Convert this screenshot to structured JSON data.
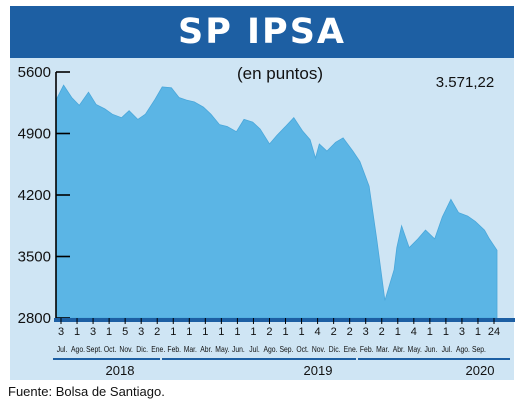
{
  "header": {
    "title": "SP IPSA"
  },
  "source": "Fuente: Bolsa de Santiago.",
  "chart_data": {
    "type": "area",
    "title": "SP IPSA",
    "subtitle": "(en puntos)",
    "last_value_label": "3.571,22",
    "ylim": [
      2800,
      5600
    ],
    "yticks": [
      "5600",
      "4900",
      "4200",
      "3500",
      "2800"
    ],
    "ytick_values": [
      5600,
      4900,
      4200,
      3500,
      2800
    ],
    "color": "#5bb5e5",
    "grid": false,
    "x_ticks": [
      {
        "day": "3",
        "month": "Jul."
      },
      {
        "day": "1",
        "month": "Ago."
      },
      {
        "day": "3",
        "month": "Sept."
      },
      {
        "day": "1",
        "month": "Oct."
      },
      {
        "day": "5",
        "month": "Nov."
      },
      {
        "day": "3",
        "month": "Dic."
      },
      {
        "day": "2",
        "month": "Ene."
      },
      {
        "day": "1",
        "month": "Feb."
      },
      {
        "day": "1",
        "month": "Mar."
      },
      {
        "day": "1",
        "month": "Abr."
      },
      {
        "day": "1",
        "month": "May."
      },
      {
        "day": "1",
        "month": "Jun."
      },
      {
        "day": "1",
        "month": "Jul."
      },
      {
        "day": "2",
        "month": "Ago."
      },
      {
        "day": "1",
        "month": "Sep."
      },
      {
        "day": "1",
        "month": "Oct."
      },
      {
        "day": "4",
        "month": "Nov."
      },
      {
        "day": "2",
        "month": "Dic."
      },
      {
        "day": "2",
        "month": "Ene."
      },
      {
        "day": "3",
        "month": "Feb."
      },
      {
        "day": "2",
        "month": "Mar."
      },
      {
        "day": "1",
        "month": "Abr."
      },
      {
        "day": "4",
        "month": "May."
      },
      {
        "day": "1",
        "month": "Jun."
      },
      {
        "day": "1",
        "month": "Jul."
      },
      {
        "day": "3",
        "month": "Ago."
      },
      {
        "day": "1",
        "month": "Sep."
      },
      {
        "day": "24",
        "month": ""
      }
    ],
    "years": [
      "2018",
      "2019",
      "2020"
    ],
    "series": [
      {
        "x": [
          "2018-07-03",
          "2018-07-17",
          "2018-08-01",
          "2018-08-15",
          "2018-09-01",
          "2018-09-15",
          "2018-10-01",
          "2018-10-15",
          "2018-11-01",
          "2018-11-15",
          "2018-12-01",
          "2018-12-15",
          "2019-01-02",
          "2019-01-15",
          "2019-02-01",
          "2019-02-15",
          "2019-03-01",
          "2019-03-15",
          "2019-04-01",
          "2019-04-15",
          "2019-05-01",
          "2019-05-15",
          "2019-06-01",
          "2019-06-15",
          "2019-07-01",
          "2019-07-15",
          "2019-08-01",
          "2019-08-15",
          "2019-09-01",
          "2019-09-15",
          "2019-10-01",
          "2019-10-15",
          "2019-10-25",
          "2019-11-01",
          "2019-11-15",
          "2019-12-01",
          "2019-12-15",
          "2020-01-02",
          "2020-01-15",
          "2020-02-01",
          "2020-02-15",
          "2020-03-01",
          "2020-03-18",
          "2020-03-23",
          "2020-04-01",
          "2020-04-15",
          "2020-05-01",
          "2020-05-15",
          "2020-06-01",
          "2020-06-15",
          "2020-07-01",
          "2020-07-15",
          "2020-08-01",
          "2020-08-15",
          "2020-09-01",
          "2020-09-10",
          "2020-09-24"
        ],
        "y": [
          5280,
          5450,
          5310,
          5220,
          5370,
          5230,
          5180,
          5120,
          5080,
          5160,
          5060,
          5120,
          5290,
          5430,
          5420,
          5310,
          5280,
          5260,
          5200,
          5120,
          5000,
          4980,
          4920,
          5060,
          5030,
          4950,
          4780,
          4880,
          4990,
          5080,
          4930,
          4830,
          4620,
          4780,
          4700,
          4800,
          4850,
          4700,
          4580,
          4300,
          3700,
          3000,
          3350,
          3600,
          3850,
          3600,
          3700,
          3800,
          3700,
          3950,
          4150,
          4000,
          3960,
          3900,
          3800,
          3700,
          3571.22
        ]
      }
    ]
  }
}
